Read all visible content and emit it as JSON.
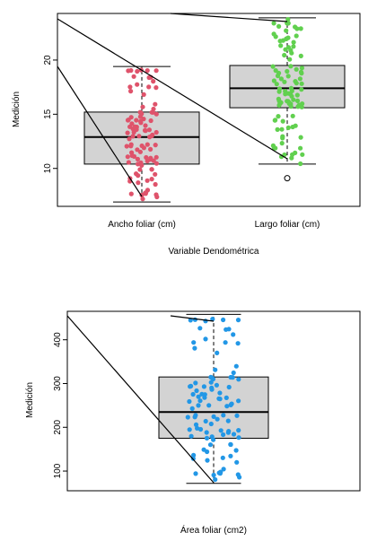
{
  "chart_data": [
    {
      "type": "boxplot",
      "xlabel": "Variable Dendométrica",
      "ylabel": "Medición",
      "ylim": [
        6.5,
        24.3
      ],
      "yticks": [
        10,
        15,
        20
      ],
      "categories": [
        "Ancho foliar (cm)",
        "Largo foliar (cm)"
      ],
      "boxes": [
        {
          "name": "Ancho foliar (cm)",
          "whisker_low": 6.9,
          "q1": 10.4,
          "median": 12.9,
          "q3": 15.2,
          "whisker_high": 19.4,
          "outliers": []
        },
        {
          "name": "Largo foliar (cm)",
          "whisker_low": 10.4,
          "q1": 15.6,
          "median": 17.4,
          "q3": 19.5,
          "whisker_high": 23.9,
          "outliers": [
            9.1
          ]
        }
      ],
      "point_colors": [
        "#df536b",
        "#61d04f"
      ],
      "grid": false
    },
    {
      "type": "boxplot",
      "xlabel": "Área foliar (cm2)",
      "ylabel": "Medición",
      "ylim": [
        55,
        465
      ],
      "yticks": [
        100,
        200,
        300,
        400
      ],
      "categories": [
        "Área foliar (cm2)"
      ],
      "boxes": [
        {
          "name": "Área foliar (cm2)",
          "whisker_low": 72,
          "q1": 175,
          "median": 235,
          "q3": 315,
          "whisker_high": 458,
          "outliers": []
        }
      ],
      "point_colors": [
        "#2297e6"
      ],
      "grid": false
    }
  ]
}
